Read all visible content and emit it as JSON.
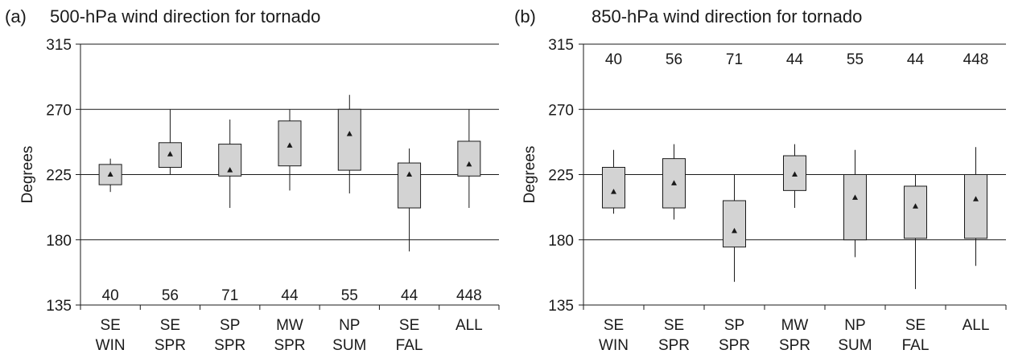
{
  "chart_data": [
    {
      "type": "boxplot",
      "panel_label": "(a)",
      "title": "500-hPa wind direction for tornado",
      "xlabel": "",
      "ylabel": "Degrees",
      "ylim": [
        135,
        315
      ],
      "yticks": [
        135,
        180,
        225,
        270,
        315
      ],
      "grid": "horizontal",
      "count_position": "bottom",
      "categories": [
        {
          "line1": "SE",
          "line2": "WIN",
          "count": "40",
          "whisker_low": 213,
          "q1": 218,
          "mean": 225,
          "q3": 232,
          "whisker_high": 236
        },
        {
          "line1": "SE",
          "line2": "SPR",
          "count": "56",
          "whisker_low": 225,
          "q1": 230,
          "mean": 239,
          "q3": 247,
          "whisker_high": 270
        },
        {
          "line1": "SP",
          "line2": "SPR",
          "count": "71",
          "whisker_low": 202,
          "q1": 224,
          "mean": 228,
          "q3": 246,
          "whisker_high": 263
        },
        {
          "line1": "MW",
          "line2": "SPR",
          "count": "44",
          "whisker_low": 214,
          "q1": 231,
          "mean": 245,
          "q3": 262,
          "whisker_high": 270
        },
        {
          "line1": "NP",
          "line2": "SUM",
          "count": "55",
          "whisker_low": 212,
          "q1": 228,
          "mean": 253,
          "q3": 270,
          "whisker_high": 280
        },
        {
          "line1": "SE",
          "line2": "FAL",
          "count": "44",
          "whisker_low": 172,
          "q1": 202,
          "mean": 225,
          "q3": 233,
          "whisker_high": 243
        },
        {
          "line1": "ALL",
          "line2": "",
          "count": "448",
          "whisker_low": 202,
          "q1": 224,
          "mean": 232,
          "q3": 248,
          "whisker_high": 270
        }
      ]
    },
    {
      "type": "boxplot",
      "panel_label": "(b)",
      "title": "850-hPa wind direction for tornado",
      "xlabel": "",
      "ylabel": "Degrees",
      "ylim": [
        135,
        315
      ],
      "yticks": [
        135,
        180,
        225,
        270,
        315
      ],
      "grid": "horizontal",
      "count_position": "top",
      "categories": [
        {
          "line1": "SE",
          "line2": "WIN",
          "count": "40",
          "whisker_low": 198,
          "q1": 202,
          "mean": 213,
          "q3": 230,
          "whisker_high": 242
        },
        {
          "line1": "SE",
          "line2": "SPR",
          "count": "56",
          "whisker_low": 194,
          "q1": 202,
          "mean": 219,
          "q3": 236,
          "whisker_high": 246
        },
        {
          "line1": "SP",
          "line2": "SPR",
          "count": "71",
          "whisker_low": 151,
          "q1": 175,
          "mean": 186,
          "q3": 207,
          "whisker_high": 225
        },
        {
          "line1": "MW",
          "line2": "SPR",
          "count": "44",
          "whisker_low": 202,
          "q1": 214,
          "mean": 225,
          "q3": 238,
          "whisker_high": 246
        },
        {
          "line1": "NP",
          "line2": "SUM",
          "count": "55",
          "whisker_low": 168,
          "q1": 180,
          "mean": 209,
          "q3": 225,
          "whisker_high": 242
        },
        {
          "line1": "SE",
          "line2": "FAL",
          "count": "44",
          "whisker_low": 146,
          "q1": 181,
          "mean": 203,
          "q3": 217,
          "whisker_high": 225
        },
        {
          "line1": "ALL",
          "line2": "",
          "count": "448",
          "whisker_low": 162,
          "q1": 181,
          "mean": 208,
          "q3": 225,
          "whisker_high": 244
        }
      ]
    }
  ],
  "style": {
    "box_fill": "#d3d3d3",
    "line_color": "#1a1a1a",
    "background": "#ffffff"
  }
}
